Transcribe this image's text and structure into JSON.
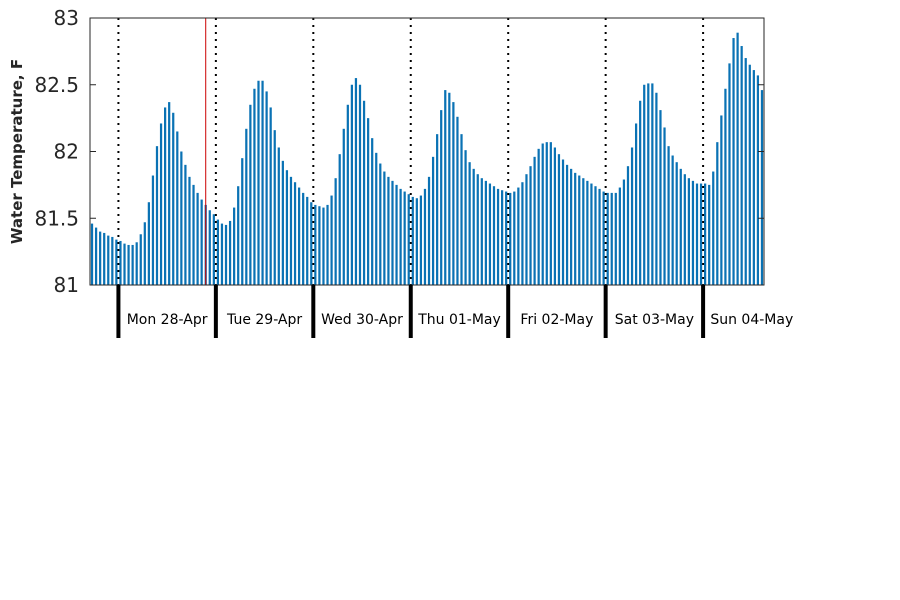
{
  "chart_data": {
    "type": "bar",
    "ylabel": "Water Temperature, F",
    "ylim": [
      81,
      83
    ],
    "yticks": [
      "81",
      "81.5",
      "82",
      "82.5",
      "83"
    ],
    "grid": false,
    "bar_color": "#0a72b4",
    "current_time_line_color": "#cc0000",
    "days": [
      "Mon 28-Apr",
      "Tue 29-Apr",
      "Wed 30-Apr",
      "Thu 01-May",
      "Fri 02-May",
      "Sat 03-May",
      "Sun 04-May"
    ],
    "hours_before_first_day": 7,
    "current_time_hour_index": 28,
    "series": [
      {
        "values": [
          81.46,
          81.43,
          81.4,
          81.39,
          81.37,
          81.36,
          81.34,
          81.33,
          81.31,
          81.3,
          81.3,
          81.32,
          81.38,
          81.47,
          81.62,
          81.82,
          82.04,
          82.21,
          82.33,
          82.37,
          82.29,
          82.15,
          82.0,
          81.9,
          81.81,
          81.75,
          81.69,
          81.64,
          81.6,
          81.56,
          81.53,
          81.49,
          81.46,
          81.45,
          81.48,
          81.58,
          81.74,
          81.95,
          82.17,
          82.35,
          82.47,
          82.53,
          82.53,
          82.45,
          82.33,
          82.16,
          82.03,
          81.93,
          81.86,
          81.81,
          81.77,
          81.73,
          81.69,
          81.66,
          81.62,
          81.6,
          81.59,
          81.58,
          81.6,
          81.67,
          81.8,
          81.98,
          82.17,
          82.35,
          82.5,
          82.55,
          82.5,
          82.38,
          82.25,
          82.1,
          81.99,
          81.91,
          81.85,
          81.81,
          81.78,
          81.75,
          81.72,
          81.7,
          81.68,
          81.66,
          81.65,
          81.67,
          81.72,
          81.81,
          81.96,
          82.13,
          82.31,
          82.46,
          82.44,
          82.37,
          82.26,
          82.13,
          82.01,
          81.92,
          81.87,
          81.83,
          81.8,
          81.78,
          81.76,
          81.74,
          81.72,
          81.71,
          81.7,
          81.69,
          81.7,
          81.73,
          81.77,
          81.83,
          81.89,
          81.96,
          82.02,
          82.06,
          82.07,
          82.07,
          82.03,
          81.98,
          81.94,
          81.9,
          81.87,
          81.84,
          81.82,
          81.8,
          81.78,
          81.76,
          81.74,
          81.72,
          81.7,
          81.69,
          81.69,
          81.69,
          81.73,
          81.79,
          81.89,
          82.03,
          82.21,
          82.38,
          82.5,
          82.51,
          82.51,
          82.44,
          82.31,
          82.18,
          82.04,
          81.97,
          81.92,
          81.87,
          81.83,
          81.8,
          81.78,
          81.76,
          81.76,
          81.76,
          81.75,
          81.85,
          82.07,
          82.27,
          82.47,
          82.66,
          82.85,
          82.89,
          82.79,
          82.7,
          82.65,
          82.61,
          82.57,
          82.46
        ]
      }
    ]
  }
}
